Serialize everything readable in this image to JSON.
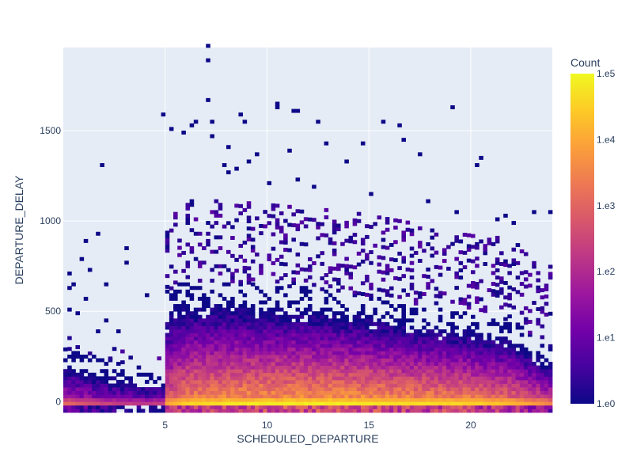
{
  "chart_data": {
    "type": "heatmap",
    "subtype": "2d-histogram",
    "xlabel": "SCHEDULED_DEPARTURE",
    "ylabel": "DEPARTURE_DELAY",
    "xlim": [
      0,
      24
    ],
    "ylim": [
      -60,
      1960
    ],
    "x_ticks": [
      5,
      10,
      15,
      20
    ],
    "x_tick_labels": [
      "5",
      "10",
      "15",
      "20"
    ],
    "y_ticks": [
      0,
      500,
      1000,
      1500
    ],
    "y_tick_labels": [
      "0",
      "500",
      "1000",
      "1500"
    ],
    "grid": true,
    "plot_bgcolor": "#e5ecf6",
    "colorbar": {
      "title": "Count",
      "scale": "log",
      "range": [
        1,
        100000
      ],
      "tick_values": [
        1,
        10,
        100,
        1000,
        10000,
        100000
      ],
      "tick_labels": [
        "1.e0",
        "1.e1",
        "1.e2",
        "1.e3",
        "1.e4",
        "1.e5"
      ],
      "colorscale": [
        "#0d0887",
        "#46039f",
        "#7201a8",
        "#9c179e",
        "#bd3786",
        "#d8576b",
        "#ed7953",
        "#fb9f3a",
        "#fdca26",
        "#f0f921"
      ]
    },
    "density_profile": {
      "hours": [
        0,
        2,
        4,
        4.9,
        5,
        6,
        8,
        10,
        12,
        14,
        16,
        18,
        20,
        22,
        24
      ],
      "top_delay": [
        250,
        200,
        130,
        130,
        560,
        620,
        620,
        600,
        580,
        560,
        520,
        480,
        450,
        400,
        250
      ],
      "peak_log_count": [
        3.2,
        2.5,
        2.3,
        2.5,
        4.0,
        4.6,
        4.8,
        4.9,
        4.9,
        4.9,
        4.8,
        4.7,
        4.6,
        4.3,
        3.5
      ]
    },
    "outliers": [
      [
        7.1,
        1960
      ],
      [
        7.05,
        1880
      ],
      [
        7.1,
        1660
      ],
      [
        10.6,
        1650
      ],
      [
        10.4,
        1630
      ],
      [
        19.1,
        1620
      ],
      [
        11.3,
        1600
      ],
      [
        11.4,
        1600
      ],
      [
        4.9,
        1580
      ],
      [
        8.7,
        1580
      ],
      [
        6.5,
        1550
      ],
      [
        8.9,
        1550
      ],
      [
        12.4,
        1550
      ],
      [
        15.6,
        1540
      ],
      [
        7.2,
        1540
      ],
      [
        6.3,
        1520
      ],
      [
        5.2,
        1500
      ],
      [
        5.9,
        1480
      ],
      [
        16.5,
        1520
      ],
      [
        7.3,
        1460
      ],
      [
        8.2,
        1400
      ],
      [
        11.0,
        1380
      ],
      [
        9.6,
        1370
      ],
      [
        17.5,
        1360
      ],
      [
        16.6,
        1440
      ],
      [
        14.7,
        1420
      ],
      [
        12.8,
        1430
      ],
      [
        9.2,
        1330
      ],
      [
        7.8,
        1300
      ],
      [
        1.8,
        1310
      ],
      [
        20.5,
        1340
      ],
      [
        20.4,
        1310
      ],
      [
        13.8,
        1320
      ],
      [
        8.5,
        1290
      ],
      [
        8.0,
        1260
      ],
      [
        11.5,
        1230
      ],
      [
        10.2,
        1200
      ],
      [
        12.3,
        1180
      ],
      [
        15.1,
        1150
      ],
      [
        17.9,
        1100
      ],
      [
        19.3,
        1050
      ],
      [
        21.7,
        1030
      ],
      [
        23.2,
        1050
      ],
      [
        21.3,
        1000
      ],
      [
        22.1,
        980
      ],
      [
        23.9,
        1050
      ],
      [
        1.1,
        880
      ],
      [
        1.7,
        920
      ],
      [
        0.8,
        790
      ],
      [
        3.0,
        840
      ],
      [
        3.0,
        760
      ],
      [
        1.3,
        720
      ],
      [
        2.0,
        640
      ],
      [
        0.5,
        640
      ],
      [
        1.2,
        560
      ],
      [
        4.0,
        590
      ],
      [
        0.3,
        500
      ],
      [
        0.7,
        490
      ],
      [
        2.1,
        440
      ],
      [
        1.6,
        380
      ],
      [
        2.7,
        390
      ],
      [
        0.2,
        710
      ],
      [
        0.2,
        630
      ]
    ]
  }
}
